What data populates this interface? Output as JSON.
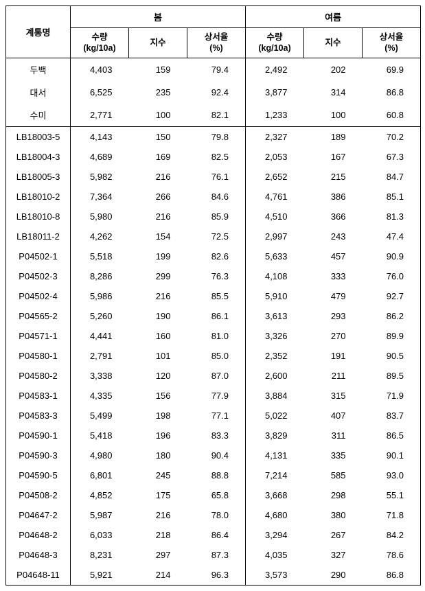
{
  "headers": {
    "row_label": "계통명",
    "group1": "봄",
    "group2": "여름",
    "sub": {
      "yield": "수량",
      "yield_unit": "(kg/10a)",
      "index": "지수",
      "rate": "상서율",
      "rate_unit": "(%)"
    }
  },
  "columns": [
    "name",
    "s_yield",
    "s_index",
    "s_rate",
    "u_yield",
    "u_index",
    "u_rate"
  ],
  "styles": {
    "font_family": "Malgun Gothic",
    "border_color": "#000000",
    "background_color": "#ffffff",
    "text_color": "#000000",
    "header_fontsize": 13,
    "body_fontsize": 13
  },
  "group1_rows": [
    {
      "name": "두백",
      "s_yield": "4,403",
      "s_index": "159",
      "s_rate": "79.4",
      "u_yield": "2,492",
      "u_index": "202",
      "u_rate": "69.9"
    },
    {
      "name": "대서",
      "s_yield": "6,525",
      "s_index": "235",
      "s_rate": "92.4",
      "u_yield": "3,877",
      "u_index": "314",
      "u_rate": "86.8"
    },
    {
      "name": "수미",
      "s_yield": "2,771",
      "s_index": "100",
      "s_rate": "82.1",
      "u_yield": "1,233",
      "u_index": "100",
      "u_rate": "60.8"
    }
  ],
  "group2_rows": [
    {
      "name": "LB18003-5",
      "s_yield": "4,143",
      "s_index": "150",
      "s_rate": "79.8",
      "u_yield": "2,327",
      "u_index": "189",
      "u_rate": "70.2"
    },
    {
      "name": "LB18004-3",
      "s_yield": "4,689",
      "s_index": "169",
      "s_rate": "82.5",
      "u_yield": "2,053",
      "u_index": "167",
      "u_rate": "67.3"
    },
    {
      "name": "LB18005-3",
      "s_yield": "5,982",
      "s_index": "216",
      "s_rate": "76.1",
      "u_yield": "2,652",
      "u_index": "215",
      "u_rate": "84.7"
    },
    {
      "name": "LB18010-2",
      "s_yield": "7,364",
      "s_index": "266",
      "s_rate": "84.6",
      "u_yield": "4,761",
      "u_index": "386",
      "u_rate": "85.1"
    },
    {
      "name": "LB18010-8",
      "s_yield": "5,980",
      "s_index": "216",
      "s_rate": "85.9",
      "u_yield": "4,510",
      "u_index": "366",
      "u_rate": "81.3"
    },
    {
      "name": "LB18011-2",
      "s_yield": "4,262",
      "s_index": "154",
      "s_rate": "72.5",
      "u_yield": "2,997",
      "u_index": "243",
      "u_rate": "47.4"
    },
    {
      "name": "P04502-1",
      "s_yield": "5,518",
      "s_index": "199",
      "s_rate": "82.6",
      "u_yield": "5,633",
      "u_index": "457",
      "u_rate": "90.9"
    },
    {
      "name": "P04502-3",
      "s_yield": "8,286",
      "s_index": "299",
      "s_rate": "76.3",
      "u_yield": "4,108",
      "u_index": "333",
      "u_rate": "76.0"
    },
    {
      "name": "P04502-4",
      "s_yield": "5,986",
      "s_index": "216",
      "s_rate": "85.5",
      "u_yield": "5,910",
      "u_index": "479",
      "u_rate": "92.7"
    },
    {
      "name": "P04565-2",
      "s_yield": "5,260",
      "s_index": "190",
      "s_rate": "86.1",
      "u_yield": "3,613",
      "u_index": "293",
      "u_rate": "86.2"
    },
    {
      "name": "P04571-1",
      "s_yield": "4,441",
      "s_index": "160",
      "s_rate": "81.0",
      "u_yield": "3,326",
      "u_index": "270",
      "u_rate": "89.9"
    },
    {
      "name": "P04580-1",
      "s_yield": "2,791",
      "s_index": "101",
      "s_rate": "85.0",
      "u_yield": "2,352",
      "u_index": "191",
      "u_rate": "90.5"
    },
    {
      "name": "P04580-2",
      "s_yield": "3,338",
      "s_index": "120",
      "s_rate": "87.0",
      "u_yield": "2,600",
      "u_index": "211",
      "u_rate": "89.5"
    },
    {
      "name": "P04583-1",
      "s_yield": "4,335",
      "s_index": "156",
      "s_rate": "77.9",
      "u_yield": "3,884",
      "u_index": "315",
      "u_rate": "71.9"
    },
    {
      "name": "P04583-3",
      "s_yield": "5,499",
      "s_index": "198",
      "s_rate": "77.1",
      "u_yield": "5,022",
      "u_index": "407",
      "u_rate": "83.7"
    },
    {
      "name": "P04590-1",
      "s_yield": "5,418",
      "s_index": "196",
      "s_rate": "83.3",
      "u_yield": "3,829",
      "u_index": "311",
      "u_rate": "86.5"
    },
    {
      "name": "P04590-3",
      "s_yield": "4,980",
      "s_index": "180",
      "s_rate": "90.4",
      "u_yield": "4,131",
      "u_index": "335",
      "u_rate": "90.1"
    },
    {
      "name": "P04590-5",
      "s_yield": "6,801",
      "s_index": "245",
      "s_rate": "88.8",
      "u_yield": "7,214",
      "u_index": "585",
      "u_rate": "93.0"
    },
    {
      "name": "P04508-2",
      "s_yield": "4,852",
      "s_index": "175",
      "s_rate": "65.8",
      "u_yield": "3,668",
      "u_index": "298",
      "u_rate": "55.1"
    },
    {
      "name": "P04647-2",
      "s_yield": "5,987",
      "s_index": "216",
      "s_rate": "78.0",
      "u_yield": "4,680",
      "u_index": "380",
      "u_rate": "71.8"
    },
    {
      "name": "P04648-2",
      "s_yield": "6,033",
      "s_index": "218",
      "s_rate": "86.4",
      "u_yield": "3,294",
      "u_index": "267",
      "u_rate": "84.2"
    },
    {
      "name": "P04648-3",
      "s_yield": "8,231",
      "s_index": "297",
      "s_rate": "87.3",
      "u_yield": "4,035",
      "u_index": "327",
      "u_rate": "78.6"
    },
    {
      "name": "P04648-11",
      "s_yield": "5,921",
      "s_index": "214",
      "s_rate": "96.3",
      "u_yield": "3,573",
      "u_index": "290",
      "u_rate": "86.8"
    }
  ]
}
